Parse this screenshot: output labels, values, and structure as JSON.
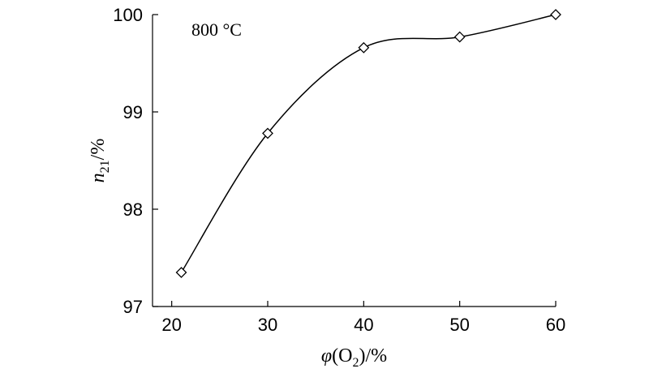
{
  "chart_data": {
    "type": "line",
    "annotation": "800 °C",
    "xlabel": {
      "symbol": "φ",
      "open": "(O",
      "sub": "2",
      "close": ")/%"
    },
    "ylabel": {
      "symbol": "n",
      "sub": "21",
      "unit": "/%"
    },
    "xlim": [
      18,
      60
    ],
    "ylim": [
      97,
      100
    ],
    "xticks": [
      20,
      30,
      40,
      50,
      60
    ],
    "yticks": [
      97,
      98,
      99,
      100
    ],
    "grid": false,
    "marker": "diamond-open",
    "series": [
      {
        "x": [
          21,
          30,
          40,
          50,
          60
        ],
        "y": [
          97.35,
          98.78,
          99.66,
          99.77,
          100.0
        ]
      }
    ]
  }
}
